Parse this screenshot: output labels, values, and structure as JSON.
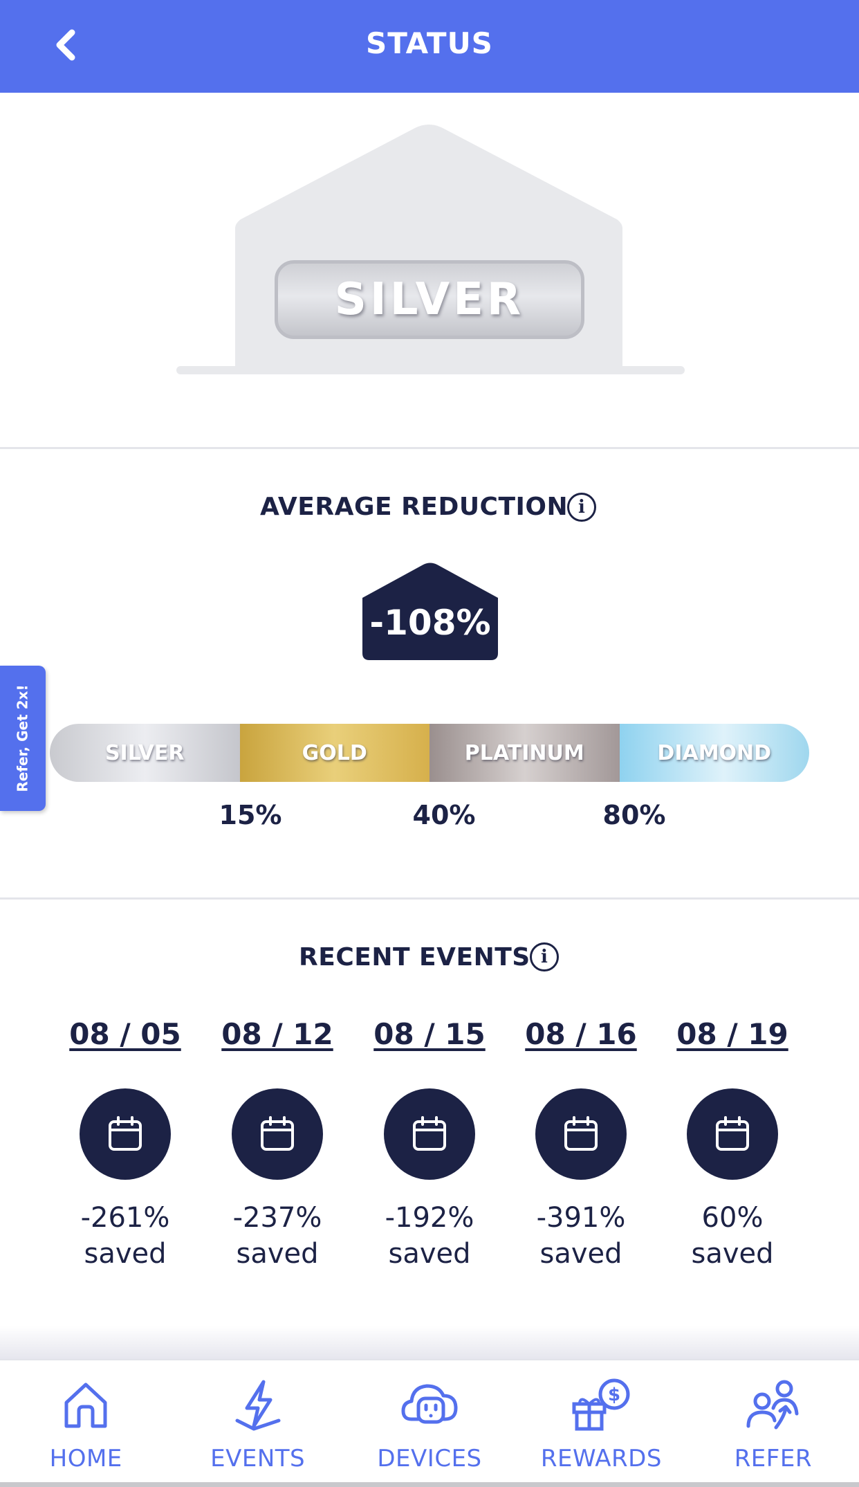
{
  "header": {
    "title": "STATUS"
  },
  "status": {
    "level": "SILVER"
  },
  "average_reduction": {
    "title": "AVERAGE REDUCTION",
    "value": "-108%",
    "tiers": [
      {
        "label": "SILVER"
      },
      {
        "label": "GOLD"
      },
      {
        "label": "PLATINUM"
      },
      {
        "label": "DIAMOND"
      }
    ],
    "thresholds": [
      "15%",
      "40%",
      "80%"
    ]
  },
  "recent_events": {
    "title": "RECENT EVENTS",
    "events": [
      {
        "date": "08 / 05",
        "percent": "-261%",
        "saved_label": "saved"
      },
      {
        "date": "08 / 12",
        "percent": "-237%",
        "saved_label": "saved"
      },
      {
        "date": "08 / 15",
        "percent": "-192%",
        "saved_label": "saved"
      },
      {
        "date": "08 / 16",
        "percent": "-391%",
        "saved_label": "saved"
      },
      {
        "date": "08 / 19",
        "percent": "60%",
        "saved_label": "saved"
      }
    ]
  },
  "side_tab": {
    "label": "Refer, Get 2x!"
  },
  "bottom_nav": {
    "items": [
      {
        "label": "HOME",
        "icon": "home-icon"
      },
      {
        "label": "EVENTS",
        "icon": "lightning-icon"
      },
      {
        "label": "DEVICES",
        "icon": "outlet-icon"
      },
      {
        "label": "REWARDS",
        "icon": "gift-dollar-icon"
      },
      {
        "label": "REFER",
        "icon": "users-arrow-icon"
      }
    ]
  },
  "colors": {
    "primary": "#5470ed",
    "navy": "#1c2245",
    "silver": "#d4d5da",
    "gold": "#d9b654",
    "platinum": "#b9b0ae",
    "diamond": "#a9dcf1"
  }
}
